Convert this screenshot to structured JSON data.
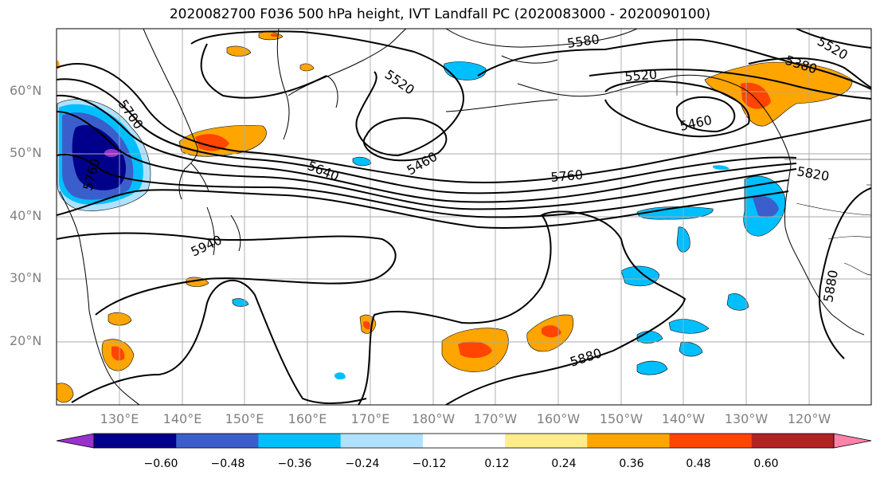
{
  "title": "2020082700 F036 500 hPa height, IVT Landfall PC (2020083000 - 2020090100)",
  "lat_labels": [
    "60°N",
    "50°N",
    "40°N",
    "30°N",
    "20°N"
  ],
  "lon_labels": [
    "130°E",
    "140°E",
    "150°E",
    "160°E",
    "170°E",
    "180°W",
    "170°W",
    "160°W",
    "150°W",
    "140°W",
    "130°W",
    "120°W"
  ],
  "contour_labels": [
    "5580",
    "5520",
    "5520",
    "5520",
    "5380",
    "5700",
    "5460",
    "5460",
    "5640",
    "5760",
    "5760",
    "5820",
    "5940",
    "5880",
    "5880"
  ],
  "colorbar": {
    "tick_labels": [
      "−0.60",
      "−0.48",
      "−0.36",
      "−0.24",
      "−0.12",
      "0.12",
      "0.24",
      "0.36",
      "0.48",
      "0.60"
    ],
    "colors": [
      "#9932CC",
      "#00008B",
      "#3A5FCD",
      "#00BFFF",
      "#B0E2FF",
      "#FFFFFF",
      "#FFEC8B",
      "#FFA500",
      "#FF4500",
      "#B22222",
      "#FF82AB"
    ]
  }
}
